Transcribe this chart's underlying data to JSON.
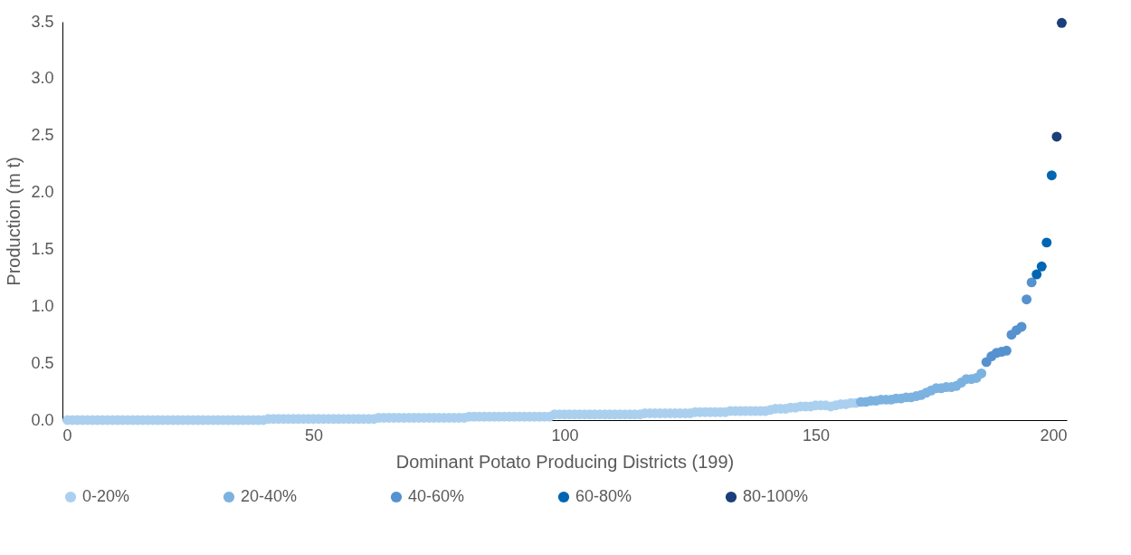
{
  "chart_data": {
    "type": "scatter",
    "xlabel": "Dominant Potato Producing Districts (199)",
    "ylabel": "Production (m t)",
    "xlim": [
      0,
      200
    ],
    "xticks": [
      0,
      50,
      100,
      150,
      200
    ],
    "ylim": [
      0,
      3.5
    ],
    "yticks": [
      {
        "value": 0,
        "label": "0.0"
      },
      {
        "value": 0.5,
        "label": "0.5"
      },
      {
        "value": 1,
        "label": "1.0"
      },
      {
        "value": 1.5,
        "label": "1.5"
      },
      {
        "value": 2,
        "label": "2.0"
      },
      {
        "value": 2.5,
        "label": "2.5"
      },
      {
        "value": 3,
        "label": "3.0"
      },
      {
        "value": 3.5,
        "label": "3.5"
      }
    ],
    "grid": false,
    "legend": "bottom",
    "marker": "circle",
    "series": [
      {
        "name": "0-20%",
        "color": "#abd0ef",
        "x": [
          1,
          2,
          3,
          4,
          5,
          6,
          7,
          8,
          9,
          10,
          11,
          12,
          13,
          14,
          15,
          16,
          17,
          18,
          19,
          20,
          21,
          22,
          23,
          24,
          25,
          26,
          27,
          28,
          29,
          30,
          31,
          32,
          33,
          34,
          35,
          36,
          37,
          38,
          39,
          40,
          41,
          42,
          43,
          44,
          45,
          46,
          47,
          48,
          49,
          50,
          51,
          52,
          53,
          54,
          55,
          56,
          57,
          58,
          59,
          60,
          61,
          62,
          63,
          64,
          65,
          66,
          67,
          68,
          69,
          70,
          71,
          72,
          73,
          74,
          75,
          76,
          77,
          78,
          79,
          80,
          81,
          82,
          83,
          84,
          85,
          86,
          87,
          88,
          89,
          90,
          91,
          92,
          93,
          94,
          95,
          96,
          97,
          98,
          99,
          100,
          101,
          102,
          103,
          104,
          105,
          106,
          107,
          108,
          109,
          110,
          111,
          112,
          113,
          114,
          115,
          116,
          117,
          118,
          119,
          120,
          121,
          122,
          123,
          124,
          125,
          126,
          127,
          128,
          129,
          130,
          131,
          132,
          133,
          134,
          135,
          136,
          137,
          138,
          139,
          140,
          141,
          142,
          143,
          144,
          145,
          146,
          147,
          148,
          149,
          150,
          151,
          152,
          153,
          154,
          155,
          156,
          157,
          158
        ],
        "values": [
          0,
          0,
          0,
          0,
          0,
          0,
          0,
          0,
          0,
          0,
          0,
          0,
          0,
          0,
          0,
          0,
          0,
          0,
          0,
          0,
          0,
          0,
          0,
          0,
          0,
          0,
          0,
          0,
          0,
          0,
          0,
          0,
          0,
          0,
          0,
          0,
          0,
          0,
          0,
          0,
          0.01,
          0.01,
          0.01,
          0.01,
          0.01,
          0.01,
          0.01,
          0.01,
          0.01,
          0.01,
          0.01,
          0.01,
          0.01,
          0.01,
          0.01,
          0.01,
          0.01,
          0.01,
          0.01,
          0.01,
          0.01,
          0.01,
          0.02,
          0.02,
          0.02,
          0.02,
          0.02,
          0.02,
          0.02,
          0.02,
          0.02,
          0.02,
          0.02,
          0.02,
          0.02,
          0.02,
          0.02,
          0.02,
          0.02,
          0.02,
          0.03,
          0.03,
          0.03,
          0.03,
          0.03,
          0.03,
          0.03,
          0.03,
          0.03,
          0.03,
          0.03,
          0.03,
          0.03,
          0.03,
          0.03,
          0.03,
          0.03,
          0.05,
          0.05,
          0.05,
          0.05,
          0.05,
          0.05,
          0.05,
          0.05,
          0.05,
          0.05,
          0.05,
          0.05,
          0.05,
          0.05,
          0.05,
          0.05,
          0.05,
          0.05,
          0.06,
          0.06,
          0.06,
          0.06,
          0.06,
          0.06,
          0.06,
          0.06,
          0.06,
          0.06,
          0.07,
          0.07,
          0.07,
          0.07,
          0.07,
          0.07,
          0.07,
          0.08,
          0.08,
          0.08,
          0.08,
          0.08,
          0.08,
          0.08,
          0.08,
          0.09,
          0.1,
          0.1,
          0.1,
          0.11,
          0.11,
          0.12,
          0.12,
          0.12,
          0.13,
          0.13,
          0.13,
          0.12,
          0.13,
          0.14,
          0.14,
          0.15,
          0.15
        ]
      },
      {
        "name": "20-40%",
        "color": "#7cb2e0",
        "x": [
          159,
          160,
          161,
          162,
          163,
          164,
          165,
          166,
          167,
          168,
          169,
          170,
          171,
          172,
          173,
          174,
          175,
          176,
          177,
          178,
          179,
          180,
          181,
          182,
          183
        ],
        "values": [
          0.16,
          0.16,
          0.17,
          0.17,
          0.18,
          0.18,
          0.18,
          0.19,
          0.19,
          0.2,
          0.2,
          0.21,
          0.22,
          0.24,
          0.26,
          0.28,
          0.28,
          0.29,
          0.29,
          0.3,
          0.33,
          0.36,
          0.36,
          0.37,
          0.41
        ]
      },
      {
        "name": "40-60%",
        "color": "#5592cf",
        "x": [
          184,
          185,
          186,
          187,
          188,
          189,
          190,
          191,
          192,
          193
        ],
        "values": [
          0.51,
          0.56,
          0.59,
          0.6,
          0.61,
          0.75,
          0.79,
          0.82,
          1.06,
          1.21
        ]
      },
      {
        "name": "60-80%",
        "color": "#0066b3",
        "x": [
          194,
          195,
          196,
          197
        ],
        "values": [
          1.28,
          1.35,
          1.56,
          2.15
        ]
      },
      {
        "name": "80-100%",
        "color": "#1b3f7a",
        "x": [
          198,
          199
        ],
        "values": [
          2.49,
          3.49
        ]
      }
    ]
  }
}
